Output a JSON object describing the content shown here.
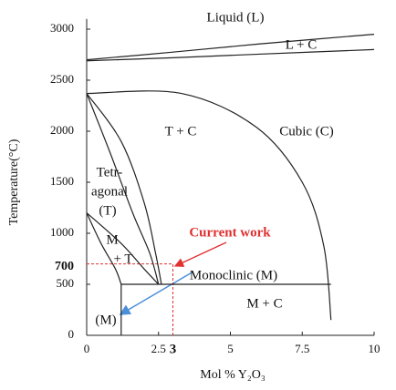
{
  "chart_data": {
    "type": "phase-diagram",
    "x_label": "Mol % Y₂O₃",
    "y_label": "Temperature(°C)",
    "xlim": [
      0,
      10
    ],
    "ylim": [
      0,
      3100
    ],
    "xticks": [
      0,
      2.5,
      5,
      7.5,
      10
    ],
    "yticks": [
      0,
      500,
      1000,
      1500,
      2000,
      2500,
      3000
    ],
    "highlight": {
      "x": 3,
      "y": 700,
      "color": "#e03030"
    },
    "boundary_color": "#222222",
    "boundaries": [
      {
        "x": [
          0,
          3,
          6,
          10
        ],
        "y": [
          2700,
          2775,
          2855,
          2950
        ]
      },
      {
        "x": [
          0,
          3,
          6,
          10
        ],
        "y": [
          2690,
          2720,
          2755,
          2800
        ]
      },
      {
        "x": [
          0,
          3.3,
          5.9,
          7.5,
          8.25,
          8.5
        ],
        "y": [
          2370,
          2370,
          2040,
          1500,
          875,
          150
        ]
      },
      {
        "x": [
          0,
          0.8,
          1.6,
          2.2,
          2.5
        ],
        "y": [
          2370,
          1800,
          1200,
          800,
          500
        ]
      },
      {
        "x": [
          0,
          1.2,
          2.0,
          2.4,
          2.6
        ],
        "y": [
          2370,
          1900,
          1300,
          800,
          500
        ]
      },
      {
        "x": [
          0,
          1.2,
          2.0,
          2.5
        ],
        "y": [
          1200,
          900,
          650,
          500
        ]
      },
      {
        "x": [
          0,
          0.5,
          1.0,
          1.2
        ],
        "y": [
          1200,
          900,
          650,
          500
        ]
      },
      {
        "x": [
          1.2,
          8.5
        ],
        "y": [
          500,
          500
        ]
      },
      {
        "x": [
          1.2,
          1.2
        ],
        "y": [
          500,
          0
        ]
      }
    ],
    "annotations": [
      "Liquid (L)",
      "L + C",
      "T + C",
      "Cubic (C)",
      "Tetr-",
      "agonal",
      "(T)",
      "M",
      "+ T",
      "Current work",
      "Monoclinic (M)",
      "M + C",
      "(M)"
    ]
  }
}
